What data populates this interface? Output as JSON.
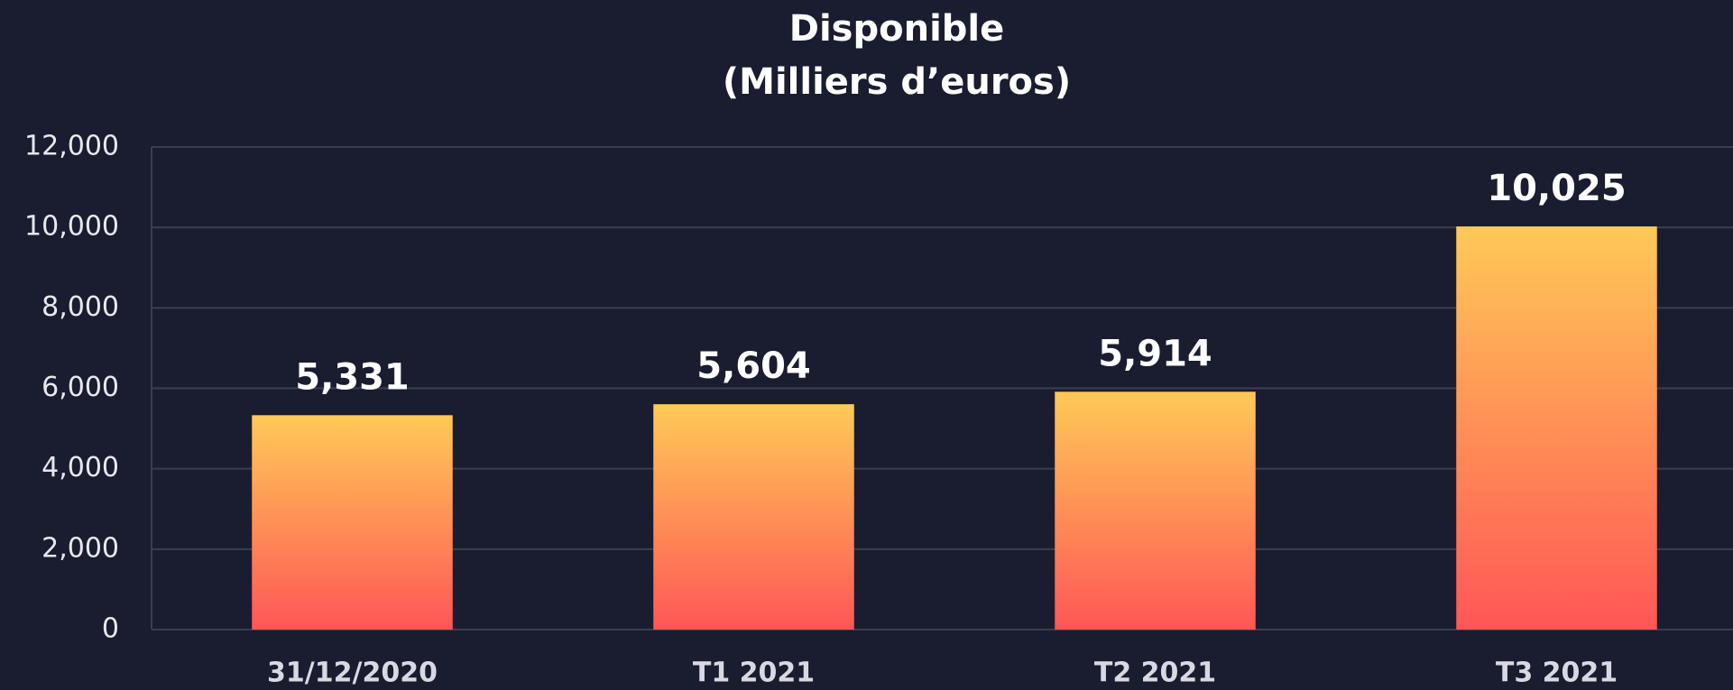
{
  "chart_data": {
    "type": "bar",
    "title": "Disponible",
    "subtitle": "(Milliers d’euros)",
    "categories": [
      "31/12/2020",
      "T1 2021",
      "T2 2021",
      "T3 2021"
    ],
    "values": [
      5331,
      5604,
      5914,
      10025
    ],
    "value_labels": [
      "5,331",
      "5,604",
      "5,914",
      "10,025"
    ],
    "color": [
      "#ffc957",
      "#ff5656"
    ],
    "ylim": [
      0,
      12000
    ],
    "yticks": [
      0,
      {
        "value": 2000,
        "label": "2,000"
      },
      {
        "value": 4000,
        "label": "4,000"
      },
      {
        "value": 6000,
        "label": "6,000"
      },
      {
        "value": 8000,
        "label": "8,000"
      },
      {
        "value": 10000,
        "label": "10,000"
      },
      {
        "value": 12000,
        "label": "12,000"
      }
    ],
    "grid": true
  }
}
